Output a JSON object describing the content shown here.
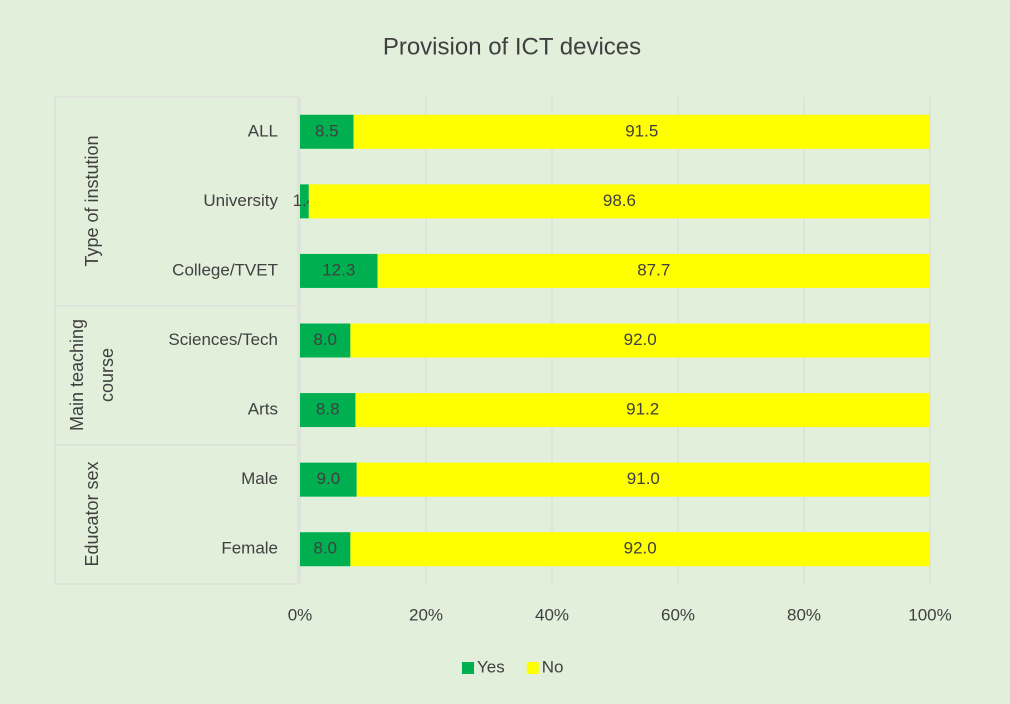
{
  "chart_data": {
    "type": "stacked-bar-horizontal",
    "title": "Provision of ICT devices",
    "groups": [
      {
        "name": "Type of instution",
        "categories": [
          "ALL",
          "University",
          "College/TVET"
        ]
      },
      {
        "name": "Main teaching course",
        "categories": [
          "Sciences/Tech",
          "Arts"
        ]
      },
      {
        "name": "Educator sex",
        "categories": [
          "Male",
          "Female"
        ]
      }
    ],
    "series": [
      {
        "name": "Yes",
        "color": "#00b050",
        "values": [
          8.5,
          1.4,
          12.3,
          8,
          8.8,
          9,
          8
        ],
        "value_labels": [
          "8.5",
          "1.4",
          "12.3",
          "8.0",
          "8.8",
          "9.0",
          "8.0"
        ]
      },
      {
        "name": "No",
        "color": "#ffff00",
        "values": [
          91.5,
          98.6,
          87.7,
          92,
          91.2,
          91,
          92
        ],
        "value_labels": [
          "91.5",
          "98.6",
          "87.7",
          "92.0",
          "91.2",
          "91.0",
          "92.0"
        ]
      }
    ],
    "xlim": [
      0,
      100
    ],
    "xticks": [
      {
        "value": 0,
        "label": "0%"
      },
      {
        "value": 20,
        "label": "20%"
      },
      {
        "value": 40,
        "label": "40%"
      },
      {
        "value": 60,
        "label": "60%"
      },
      {
        "value": 80,
        "label": "80%"
      },
      {
        "value": 100,
        "label": "100%"
      }
    ],
    "grid": true,
    "legend": "bottom"
  }
}
